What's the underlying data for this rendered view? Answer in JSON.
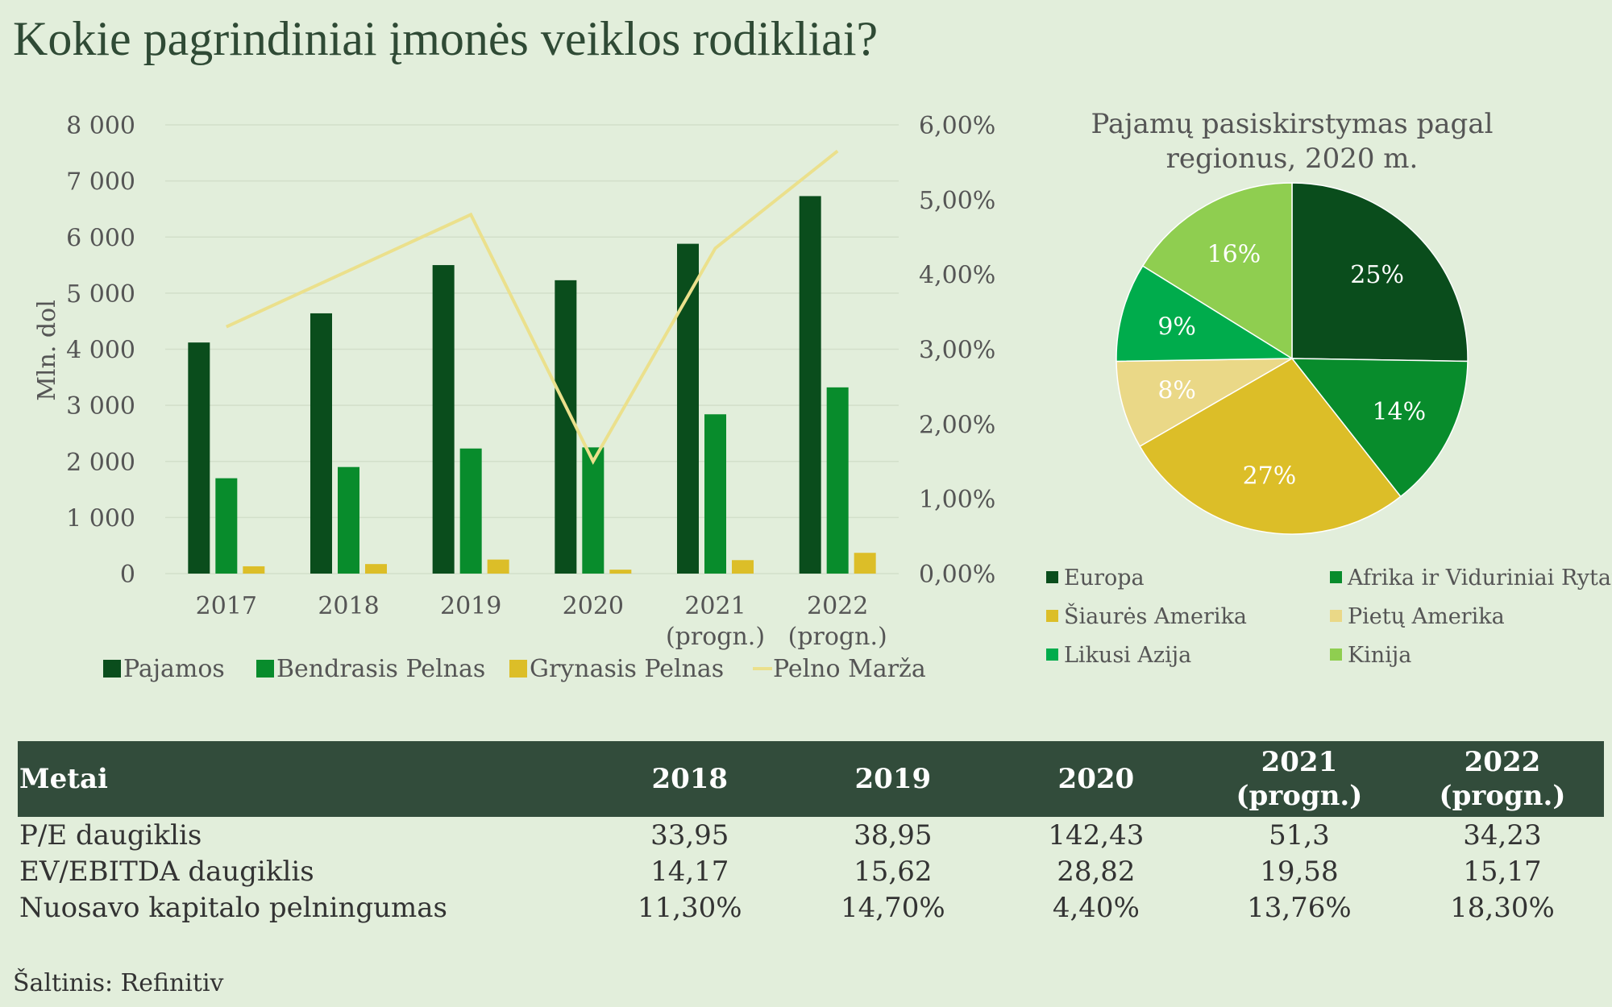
{
  "title": "Kokie pagrindiniai įmonės veiklos rodikliai?",
  "colors": {
    "background": "#e2eedb",
    "pajamos": "#0a4d1c",
    "bendrasis": "#088c2c",
    "grynasis": "#dcbe28",
    "marza": "#ebe08c",
    "table_header": "#324c3b"
  },
  "chart_data": [
    {
      "type": "bar",
      "ylabel": "Mln. dol",
      "ylim": [
        0,
        8000
      ],
      "y_ticks": [
        "8 000",
        "7 000",
        "6 000",
        "5 000",
        "4 000",
        "3 000",
        "2 000",
        "1 000",
        "0"
      ],
      "y2lim": [
        0,
        6
      ],
      "y2_ticks": [
        "6,00%",
        "5,00%",
        "4,00%",
        "3,00%",
        "2,00%",
        "1,00%",
        "0,00%"
      ],
      "categories": [
        [
          "2017"
        ],
        [
          "2018"
        ],
        [
          "2019"
        ],
        [
          "2020"
        ],
        [
          "2021",
          "(progn.)"
        ],
        [
          "2022",
          "(progn.)"
        ]
      ],
      "series": [
        {
          "name": "Pajamos",
          "kind": "bar",
          "color": "#0a4d1c",
          "values": [
            4120,
            4640,
            5500,
            5230,
            5880,
            6730
          ]
        },
        {
          "name": "Bendrasis Pelnas",
          "kind": "bar",
          "color": "#088c2c",
          "values": [
            1700,
            1900,
            2230,
            2250,
            2840,
            3320
          ]
        },
        {
          "name": "Grynasis Pelnas",
          "kind": "bar",
          "color": "#dcbe28",
          "values": [
            130,
            170,
            250,
            70,
            240,
            370
          ]
        },
        {
          "name": "Pelno Marža",
          "kind": "line",
          "axis": "right",
          "color": "#ebe08c",
          "values": [
            3.3,
            4.05,
            4.8,
            1.5,
            4.35,
            5.65
          ]
        }
      ],
      "grid": true,
      "legend": "bottom"
    },
    {
      "type": "pie",
      "title": [
        "Pajamų pasiskirstymas pagal",
        "regionus, 2020 m."
      ],
      "slices": [
        {
          "name": "Europa",
          "value": 25,
          "label": "25%",
          "color": "#0a4d1c"
        },
        {
          "name": "Afrika ir Viduriniai Rytai",
          "value": 14,
          "label": "14%",
          "color": "#088c2c"
        },
        {
          "name": "Šiaurės Amerika",
          "value": 27,
          "label": "27%",
          "color": "#dcbe28"
        },
        {
          "name": "Pietų Amerika",
          "value": 8,
          "label": "8%",
          "color": "#ead887"
        },
        {
          "name": "Likusi Azija",
          "value": 9,
          "label": "9%",
          "color": "#00ac4c"
        },
        {
          "name": "Kinija",
          "value": 16,
          "label": "16%",
          "color": "#8fce50"
        }
      ],
      "legend": "bottom"
    }
  ],
  "table": {
    "headers": [
      "Metai",
      "2018",
      "2019",
      "2020",
      "2021\n(progn.)",
      "2022\n(progn.)"
    ],
    "rows": [
      [
        "P/E daugiklis",
        "33,95",
        "38,95",
        "142,43",
        "51,3",
        "34,23"
      ],
      [
        "EV/EBITDA daugiklis",
        "14,17",
        "15,62",
        "28,82",
        "19,58",
        "15,17"
      ],
      [
        "Nuosavo kapitalo pelningumas",
        "11,30%",
        "14,70%",
        "4,40%",
        "13,76%",
        "18,30%"
      ]
    ]
  },
  "source": "Šaltinis: Refinitiv"
}
